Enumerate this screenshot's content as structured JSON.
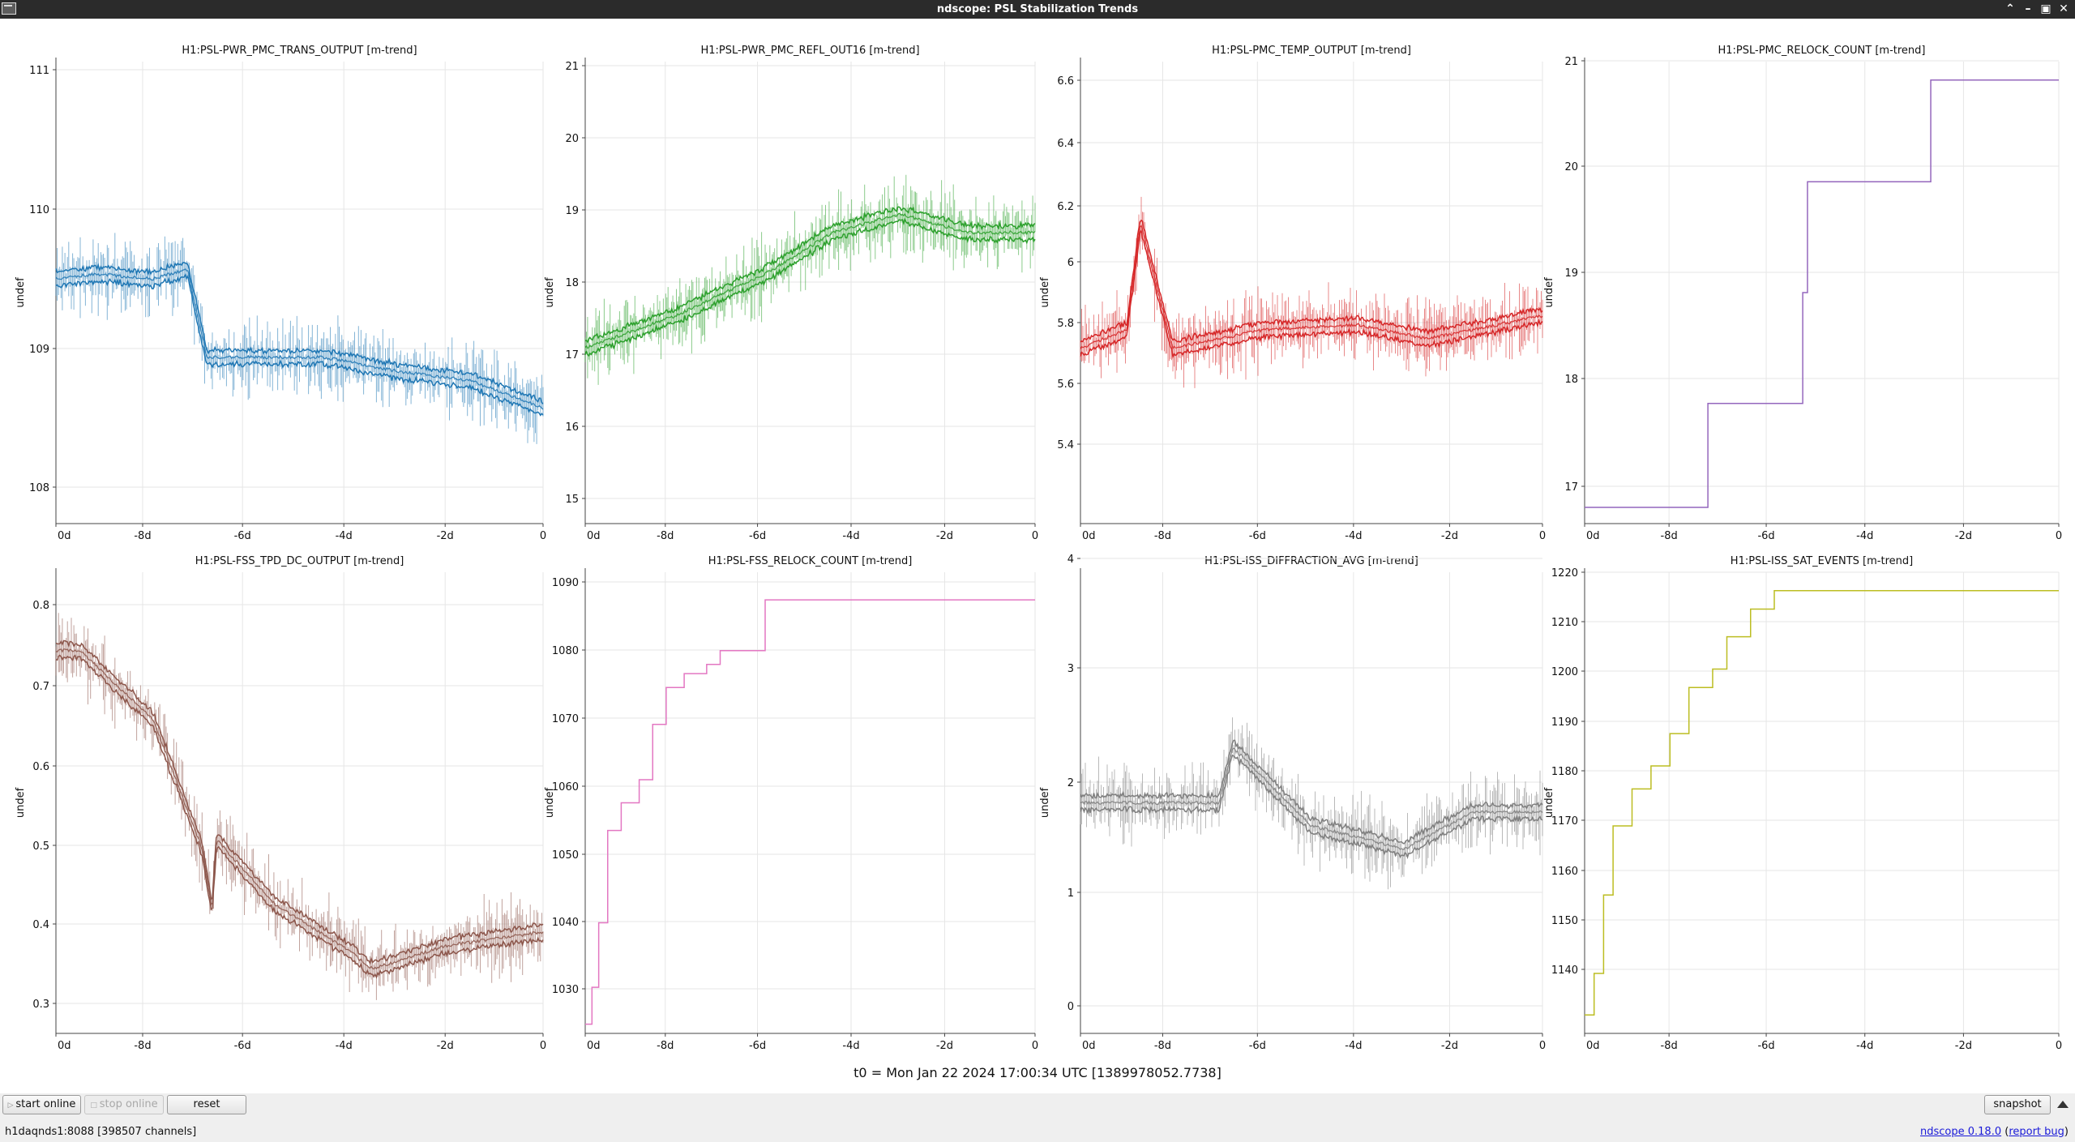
{
  "window": {
    "title": "ndscope: PSL Stabilization Trends"
  },
  "plots": [
    {
      "title": "H1:PSL-PWR_PMC_TRANS_OUTPUT [m-trend]",
      "ylabel": "undef",
      "color": "#1f77b4",
      "yticks": [
        "111",
        "110",
        "109",
        "108"
      ],
      "xticks": [
        "0d",
        "-8d",
        "-6d",
        "-4d",
        "-2d",
        "0"
      ],
      "type": "band"
    },
    {
      "title": "H1:PSL-PWR_PMC_REFL_OUT16 [m-trend]",
      "ylabel": "undef",
      "color": "#2ca02c",
      "yticks": [
        "21",
        "20",
        "19",
        "18",
        "17",
        "16",
        "15"
      ],
      "xticks": [
        "0d",
        "-8d",
        "-6d",
        "-4d",
        "-2d",
        "0"
      ],
      "type": "band"
    },
    {
      "title": "H1:PSL-PMC_TEMP_OUTPUT [m-trend]",
      "ylabel": "undef",
      "color": "#d62728",
      "yticks": [
        "6.6",
        "6.4",
        "6.2",
        "6",
        "5.8",
        "5.6",
        "5.4"
      ],
      "xticks": [
        "0d",
        "-8d",
        "-6d",
        "-4d",
        "-2d",
        "0"
      ],
      "type": "band"
    },
    {
      "title": "H1:PSL-PMC_RELOCK_COUNT [m-trend]",
      "ylabel": "undef",
      "color": "#9467bd",
      "yticks": [
        "21",
        "20",
        "19",
        "18",
        "17"
      ],
      "xticks": [
        "0d",
        "-8d",
        "-6d",
        "-4d",
        "-2d",
        "0"
      ],
      "type": "step"
    },
    {
      "title": "H1:PSL-FSS_TPD_DC_OUTPUT [m-trend]",
      "ylabel": "undef",
      "color": "#8c564b",
      "yticks": [
        "0.8",
        "0.7",
        "0.6",
        "0.5",
        "0.4",
        "0.3"
      ],
      "xticks": [
        "0d",
        "-8d",
        "-6d",
        "-4d",
        "-2d",
        "0"
      ],
      "type": "band"
    },
    {
      "title": "H1:PSL-FSS_RELOCK_COUNT [m-trend]",
      "ylabel": "undef",
      "color": "#e377c2",
      "yticks": [
        "1090",
        "1080",
        "1070",
        "1060",
        "1050",
        "1040",
        "1030"
      ],
      "xticks": [
        "0d",
        "-8d",
        "-6d",
        "-4d",
        "-2d",
        "0"
      ],
      "type": "step"
    },
    {
      "title": "H1:PSL-ISS_DIFFRACTION_AVG [m-trend]",
      "ylabel": "undef",
      "color": "#7f7f7f",
      "yticks": [
        "4",
        "3",
        "2",
        "1",
        "0"
      ],
      "xticks": [
        "0d",
        "-8d",
        "-6d",
        "-4d",
        "-2d",
        "0"
      ],
      "type": "band"
    },
    {
      "title": "H1:PSL-ISS_SAT_EVENTS [m-trend]",
      "ylabel": "undef",
      "color": "#bcbd22",
      "yticks": [
        "1220",
        "1210",
        "1200",
        "1190",
        "1180",
        "1170",
        "1160",
        "1150",
        "1140"
      ],
      "xticks": [
        "0d",
        "-8d",
        "-6d",
        "-4d",
        "-2d",
        "0"
      ],
      "type": "step"
    }
  ],
  "t0_label": "t0 = Mon Jan 22 2024 17:00:34 UTC [1389978052.7738]",
  "buttons": {
    "start_online": "start online",
    "stop_online": "stop online",
    "reset": "reset",
    "snapshot": "snapshot"
  },
  "status": {
    "server": "h1daqnds1:8088  [398507 channels]",
    "version_link": "ndscope 0.18.0",
    "report_link": "report bug"
  }
}
